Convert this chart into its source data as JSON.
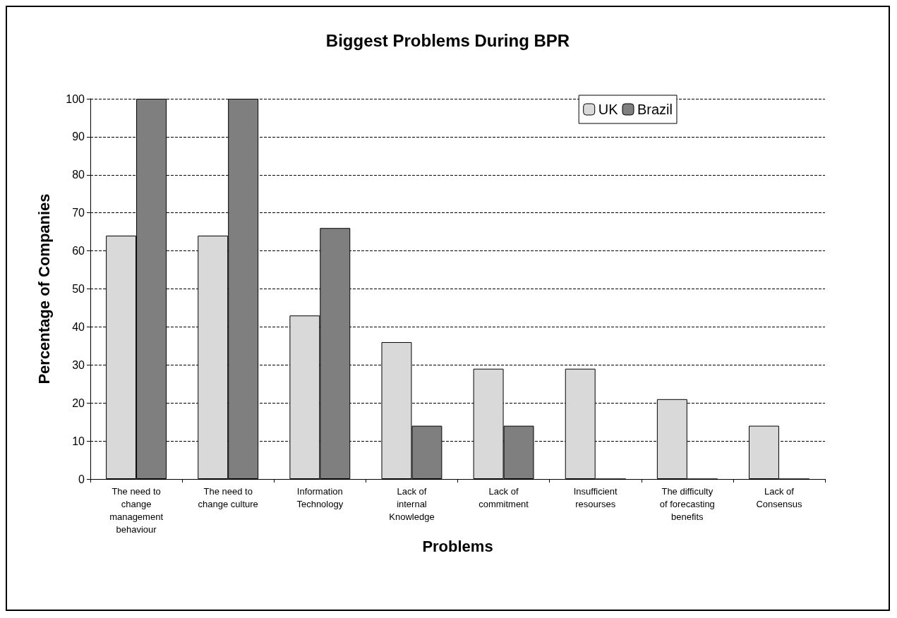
{
  "chart_data": {
    "type": "bar",
    "title": "Biggest Problems During BPR",
    "xlabel": "Problems",
    "ylabel": "Percentage of Companies",
    "categories": [
      "The need to change management behaviour",
      "The need to change culture",
      "Information Technology",
      "Lack of internal Knowledge",
      "Lack of commitment",
      "Insufficient resourses",
      "The difficulty of forecasting benefits",
      "Lack of Consensus"
    ],
    "series": [
      {
        "name": "UK",
        "color": "#d9d9d9",
        "values": [
          64,
          64,
          43,
          36,
          29,
          29,
          21,
          14
        ]
      },
      {
        "name": "Brazil",
        "color": "#7f7f7f",
        "values": [
          100,
          100,
          66,
          14,
          14,
          0,
          0,
          0
        ]
      }
    ],
    "ylim": [
      0,
      100
    ],
    "yticks": [
      0,
      10,
      20,
      30,
      40,
      50,
      60,
      70,
      80,
      90,
      100
    ],
    "grid": "y",
    "legend": "top right"
  }
}
